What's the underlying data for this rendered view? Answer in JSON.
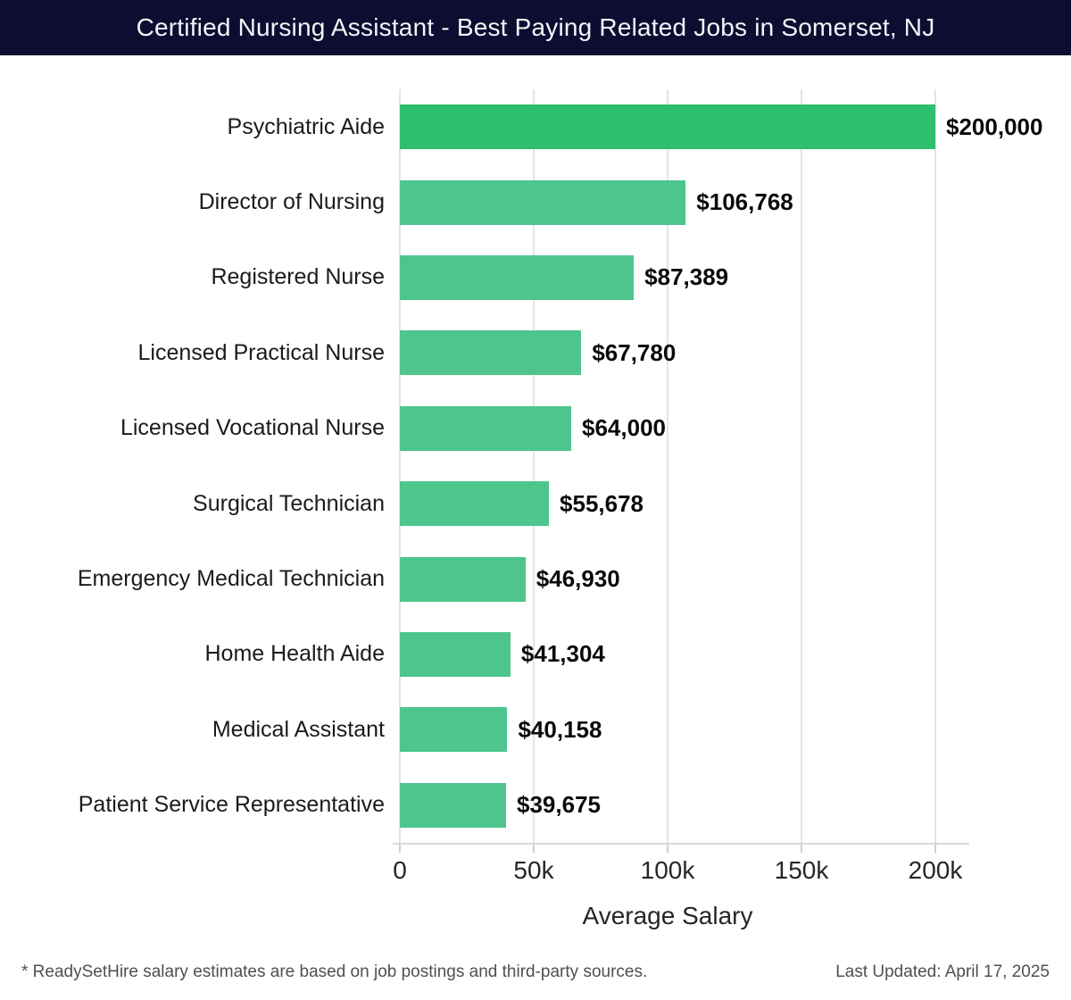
{
  "header": {
    "title": "Certified Nursing Assistant - Best Paying Related Jobs in Somerset, NJ",
    "bg_color": "#0d0c31",
    "text_color": "#f4f4f8"
  },
  "chart_data": {
    "type": "bar",
    "orientation": "horizontal",
    "title": "Certified Nursing Assistant - Best Paying Related Jobs in Somerset, NJ",
    "categories": [
      "Psychiatric Aide",
      "Director of Nursing",
      "Registered Nurse",
      "Licensed Practical Nurse",
      "Licensed Vocational Nurse",
      "Surgical Technician",
      "Emergency Medical Technician",
      "Home Health Aide",
      "Medical Assistant",
      "Patient Service Representative"
    ],
    "values": [
      200000,
      106768,
      87389,
      67780,
      64000,
      55678,
      46930,
      41304,
      40158,
      39675
    ],
    "value_labels": [
      "$200,000",
      "$106,768",
      "$87,389",
      "$67,780",
      "$64,000",
      "$55,678",
      "$46,930",
      "$41,304",
      "$40,158",
      "$39,675"
    ],
    "xlabel": "Average Salary",
    "ylabel": "",
    "x_ticks": [
      "0",
      "50k",
      "100k",
      "150k",
      "200k"
    ],
    "x_tick_values": [
      0,
      50000,
      100000,
      150000,
      200000
    ],
    "xlim": [
      0,
      200000
    ],
    "grid": "vertical",
    "legend": "none",
    "bar_color_first": "#2ebe6e",
    "bar_color_rest": "#4dc58c"
  },
  "footer": {
    "note": "* ReadySetHire salary estimates are based on job postings and third-party sources.",
    "last_updated": "Last Updated: April 17, 2025"
  }
}
